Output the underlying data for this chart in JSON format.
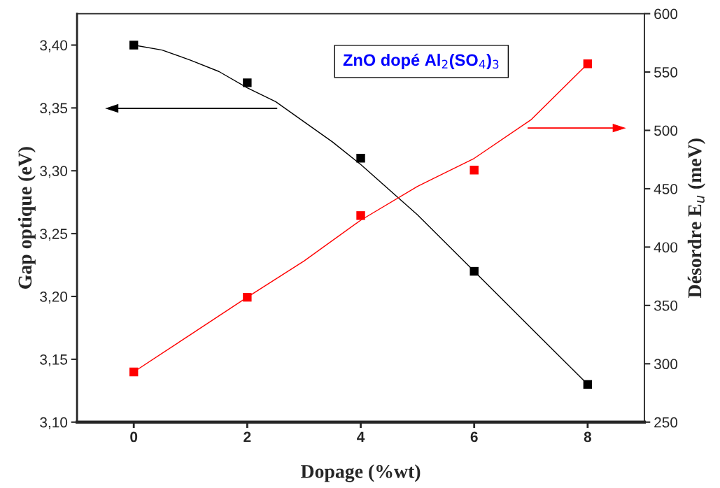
{
  "chart_data": {
    "type": "scatter",
    "xlabel": "Dopage (%wt)",
    "ylabel": "Gap optique (eV)",
    "y2label": "Désordre E$_{u}$ (meV)",
    "annotations": [
      "ZnO dopé Al$_{2}$(SO$_{4}$)$_{3}$"
    ],
    "xlim": [
      -1,
      9
    ],
    "xticks": [
      0,
      2,
      4,
      6,
      8
    ],
    "ylim": [
      3.1,
      3.425
    ],
    "yticks": [
      {
        "value": 3.1,
        "label": "3,10"
      },
      {
        "value": 3.15,
        "label": "3,15"
      },
      {
        "value": 3.2,
        "label": "3,20"
      },
      {
        "value": 3.25,
        "label": "3,25"
      },
      {
        "value": 3.3,
        "label": "3,30"
      },
      {
        "value": 3.35,
        "label": "3,35"
      },
      {
        "value": 3.4,
        "label": "3,40"
      }
    ],
    "y2lim": [
      250,
      600
    ],
    "y2ticks": [
      250,
      300,
      350,
      400,
      450,
      500,
      550,
      600
    ],
    "grid": false,
    "legend": false,
    "marker": "square",
    "series": [
      {
        "color": "#000000",
        "x": [
          0,
          2,
          4,
          6,
          8
        ],
        "values": [
          3.4,
          3.37,
          3.31,
          3.22,
          3.13
        ]
      },
      {
        "color": "#ff0000",
        "axis": "y2",
        "x": [
          0,
          2,
          4,
          6,
          8
        ],
        "values": [
          293,
          357,
          427,
          466,
          557
        ]
      },
      {
        "type": "line",
        "color": "#000000",
        "marker": "none",
        "x": [
          0,
          0.5,
          1,
          1.5,
          2,
          2.5,
          3,
          3.5,
          4,
          5,
          6,
          7,
          8
        ],
        "values": [
          3.4,
          3.396,
          3.388,
          3.379,
          3.366,
          3.355,
          3.339,
          3.323,
          3.305,
          3.265,
          3.22,
          3.175,
          3.13
        ]
      },
      {
        "type": "line",
        "color": "#ff0000",
        "marker": "none",
        "axis": "y2",
        "x": [
          0,
          1,
          2,
          3,
          4,
          5,
          6,
          7,
          8
        ],
        "values": [
          293,
          325,
          357,
          388,
          423,
          452,
          476,
          509,
          557
        ]
      }
    ]
  }
}
